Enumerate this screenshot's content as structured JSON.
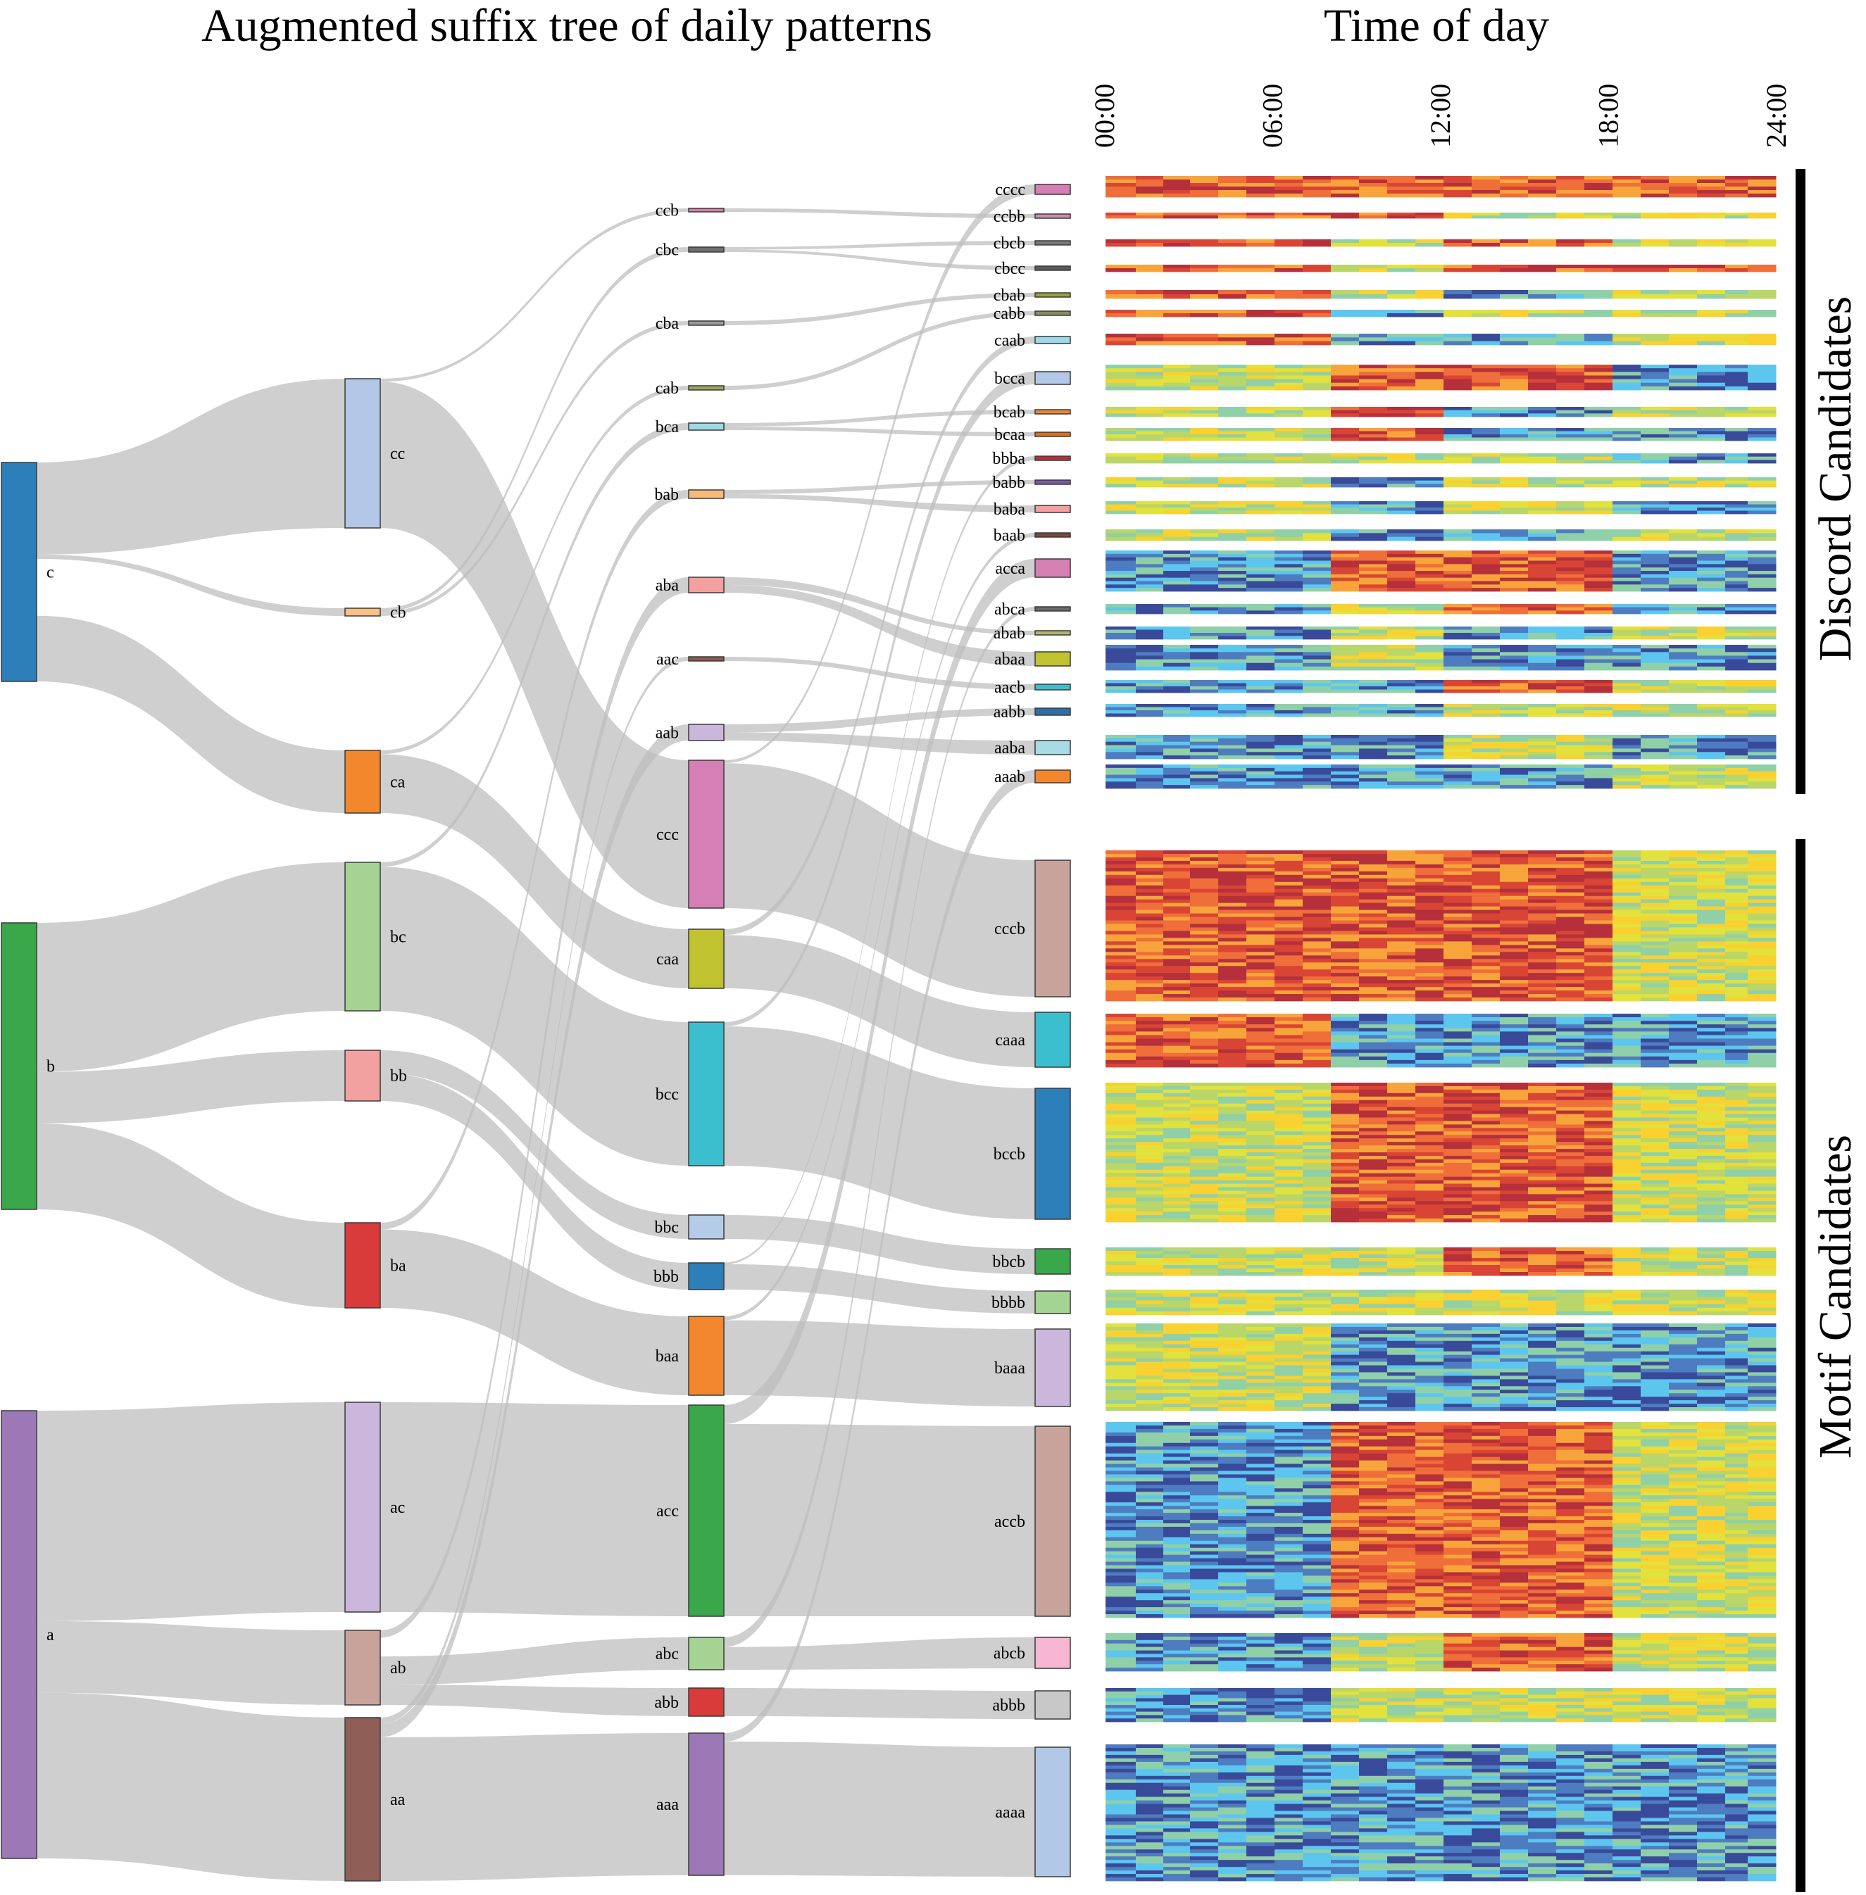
{
  "header": {
    "tree_title": "Augmented suffix tree of daily patterns",
    "time_title": "Time of day"
  },
  "time_ticks": [
    "00:00",
    "06:00",
    "12:00",
    "18:00",
    "24:00"
  ],
  "groups": {
    "discord_label": "Discord Candidates",
    "motif_label": "Motif Candidates"
  },
  "colors": {
    "link": "#bdbdbd",
    "heatmap_scale": [
      "#3a4a9a",
      "#4e7cc0",
      "#5cc6ef",
      "#8fd0a8",
      "#b9d66a",
      "#e3e13c",
      "#f9d130",
      "#f7a53a",
      "#ef6e3a",
      "#d94535",
      "#b5303a"
    ]
  },
  "tree": {
    "level1": [
      {
        "label": "c",
        "color": "#2c7fb8"
      },
      {
        "label": "b",
        "color": "#3aa84a"
      },
      {
        "label": "a",
        "color": "#9c78b6"
      }
    ],
    "level2": [
      {
        "label": "cc",
        "color": "#b2c8e6"
      },
      {
        "label": "cb",
        "color": "#f9bf85"
      },
      {
        "label": "ca",
        "color": "#f2872e"
      },
      {
        "label": "bc",
        "color": "#a5d394"
      },
      {
        "label": "bb",
        "color": "#f2a0a0"
      },
      {
        "label": "ba",
        "color": "#d93a3a"
      },
      {
        "label": "ac",
        "color": "#cbb6dc"
      },
      {
        "label": "ab",
        "color": "#c8a39b"
      },
      {
        "label": "aa",
        "color": "#8f5e57"
      }
    ],
    "level3": [
      {
        "label": "ccb",
        "color": "#d47fa8"
      },
      {
        "label": "cbc",
        "color": "#6e6e6e"
      },
      {
        "label": "cba",
        "color": "#9a9a9a"
      },
      {
        "label": "cab",
        "color": "#a2a35a"
      },
      {
        "label": "bca",
        "color": "#9dd9e8"
      },
      {
        "label": "bab",
        "color": "#f7ba7a"
      },
      {
        "label": "aba",
        "color": "#f3a0a0"
      },
      {
        "label": "aac",
        "color": "#8b5a50"
      },
      {
        "label": "aab",
        "color": "#cbb6dc"
      },
      {
        "label": "ccc",
        "color": "#d67fb5"
      },
      {
        "label": "caa",
        "color": "#c0c230"
      },
      {
        "label": "bcc",
        "color": "#3bbfcf"
      },
      {
        "label": "bbc",
        "color": "#b5cce8"
      },
      {
        "label": "bbb",
        "color": "#2c7fb8"
      },
      {
        "label": "baa",
        "color": "#f2872e"
      },
      {
        "label": "acc",
        "color": "#3aa84a"
      },
      {
        "label": "abc",
        "color": "#a5d394"
      },
      {
        "label": "abb",
        "color": "#d93a3a"
      },
      {
        "label": "aaa",
        "color": "#9c78b6"
      }
    ],
    "level4": [
      {
        "label": "cccc",
        "color": "#d67fb5"
      },
      {
        "label": "ccbb",
        "color": "#c98fb0"
      },
      {
        "label": "cbcb",
        "color": "#7a7a7a"
      },
      {
        "label": "cbcc",
        "color": "#5a5a5a"
      },
      {
        "label": "cbab",
        "color": "#9e9e3c"
      },
      {
        "label": "cabb",
        "color": "#8c8c5a"
      },
      {
        "label": "caab",
        "color": "#9dd9e8"
      },
      {
        "label": "bcca",
        "color": "#b2c8e6"
      },
      {
        "label": "bcab",
        "color": "#f2872e"
      },
      {
        "label": "bcaa",
        "color": "#d97020"
      },
      {
        "label": "bbba",
        "color": "#b5303a"
      },
      {
        "label": "babb",
        "color": "#7a5aa0"
      },
      {
        "label": "baba",
        "color": "#f2a0a0"
      },
      {
        "label": "baab",
        "color": "#7a4a3a"
      },
      {
        "label": "acca",
        "color": "#d67fb5"
      },
      {
        "label": "abca",
        "color": "#6a6a6a"
      },
      {
        "label": "abab",
        "color": "#b5b56a"
      },
      {
        "label": "abaa",
        "color": "#c0c230"
      },
      {
        "label": "aacb",
        "color": "#3bbfcf"
      },
      {
        "label": "aabb",
        "color": "#2c6fa8"
      },
      {
        "label": "aaba",
        "color": "#a8dbe6"
      },
      {
        "label": "aaab",
        "color": "#f2872e"
      },
      {
        "label": "cccb",
        "color": "#c8a39b"
      },
      {
        "label": "caaa",
        "color": "#3bbfcf"
      },
      {
        "label": "bccb",
        "color": "#2c7fb8"
      },
      {
        "label": "bbcb",
        "color": "#3aa84a"
      },
      {
        "label": "bbbb",
        "color": "#a5d394"
      },
      {
        "label": "baaa",
        "color": "#cbb6dc"
      },
      {
        "label": "accb",
        "color": "#c8a39b"
      },
      {
        "label": "abcb",
        "color": "#f7b6d2"
      },
      {
        "label": "abbb",
        "color": "#c8c8c8"
      },
      {
        "label": "aaaa",
        "color": "#b2c8e6"
      }
    ]
  }
}
